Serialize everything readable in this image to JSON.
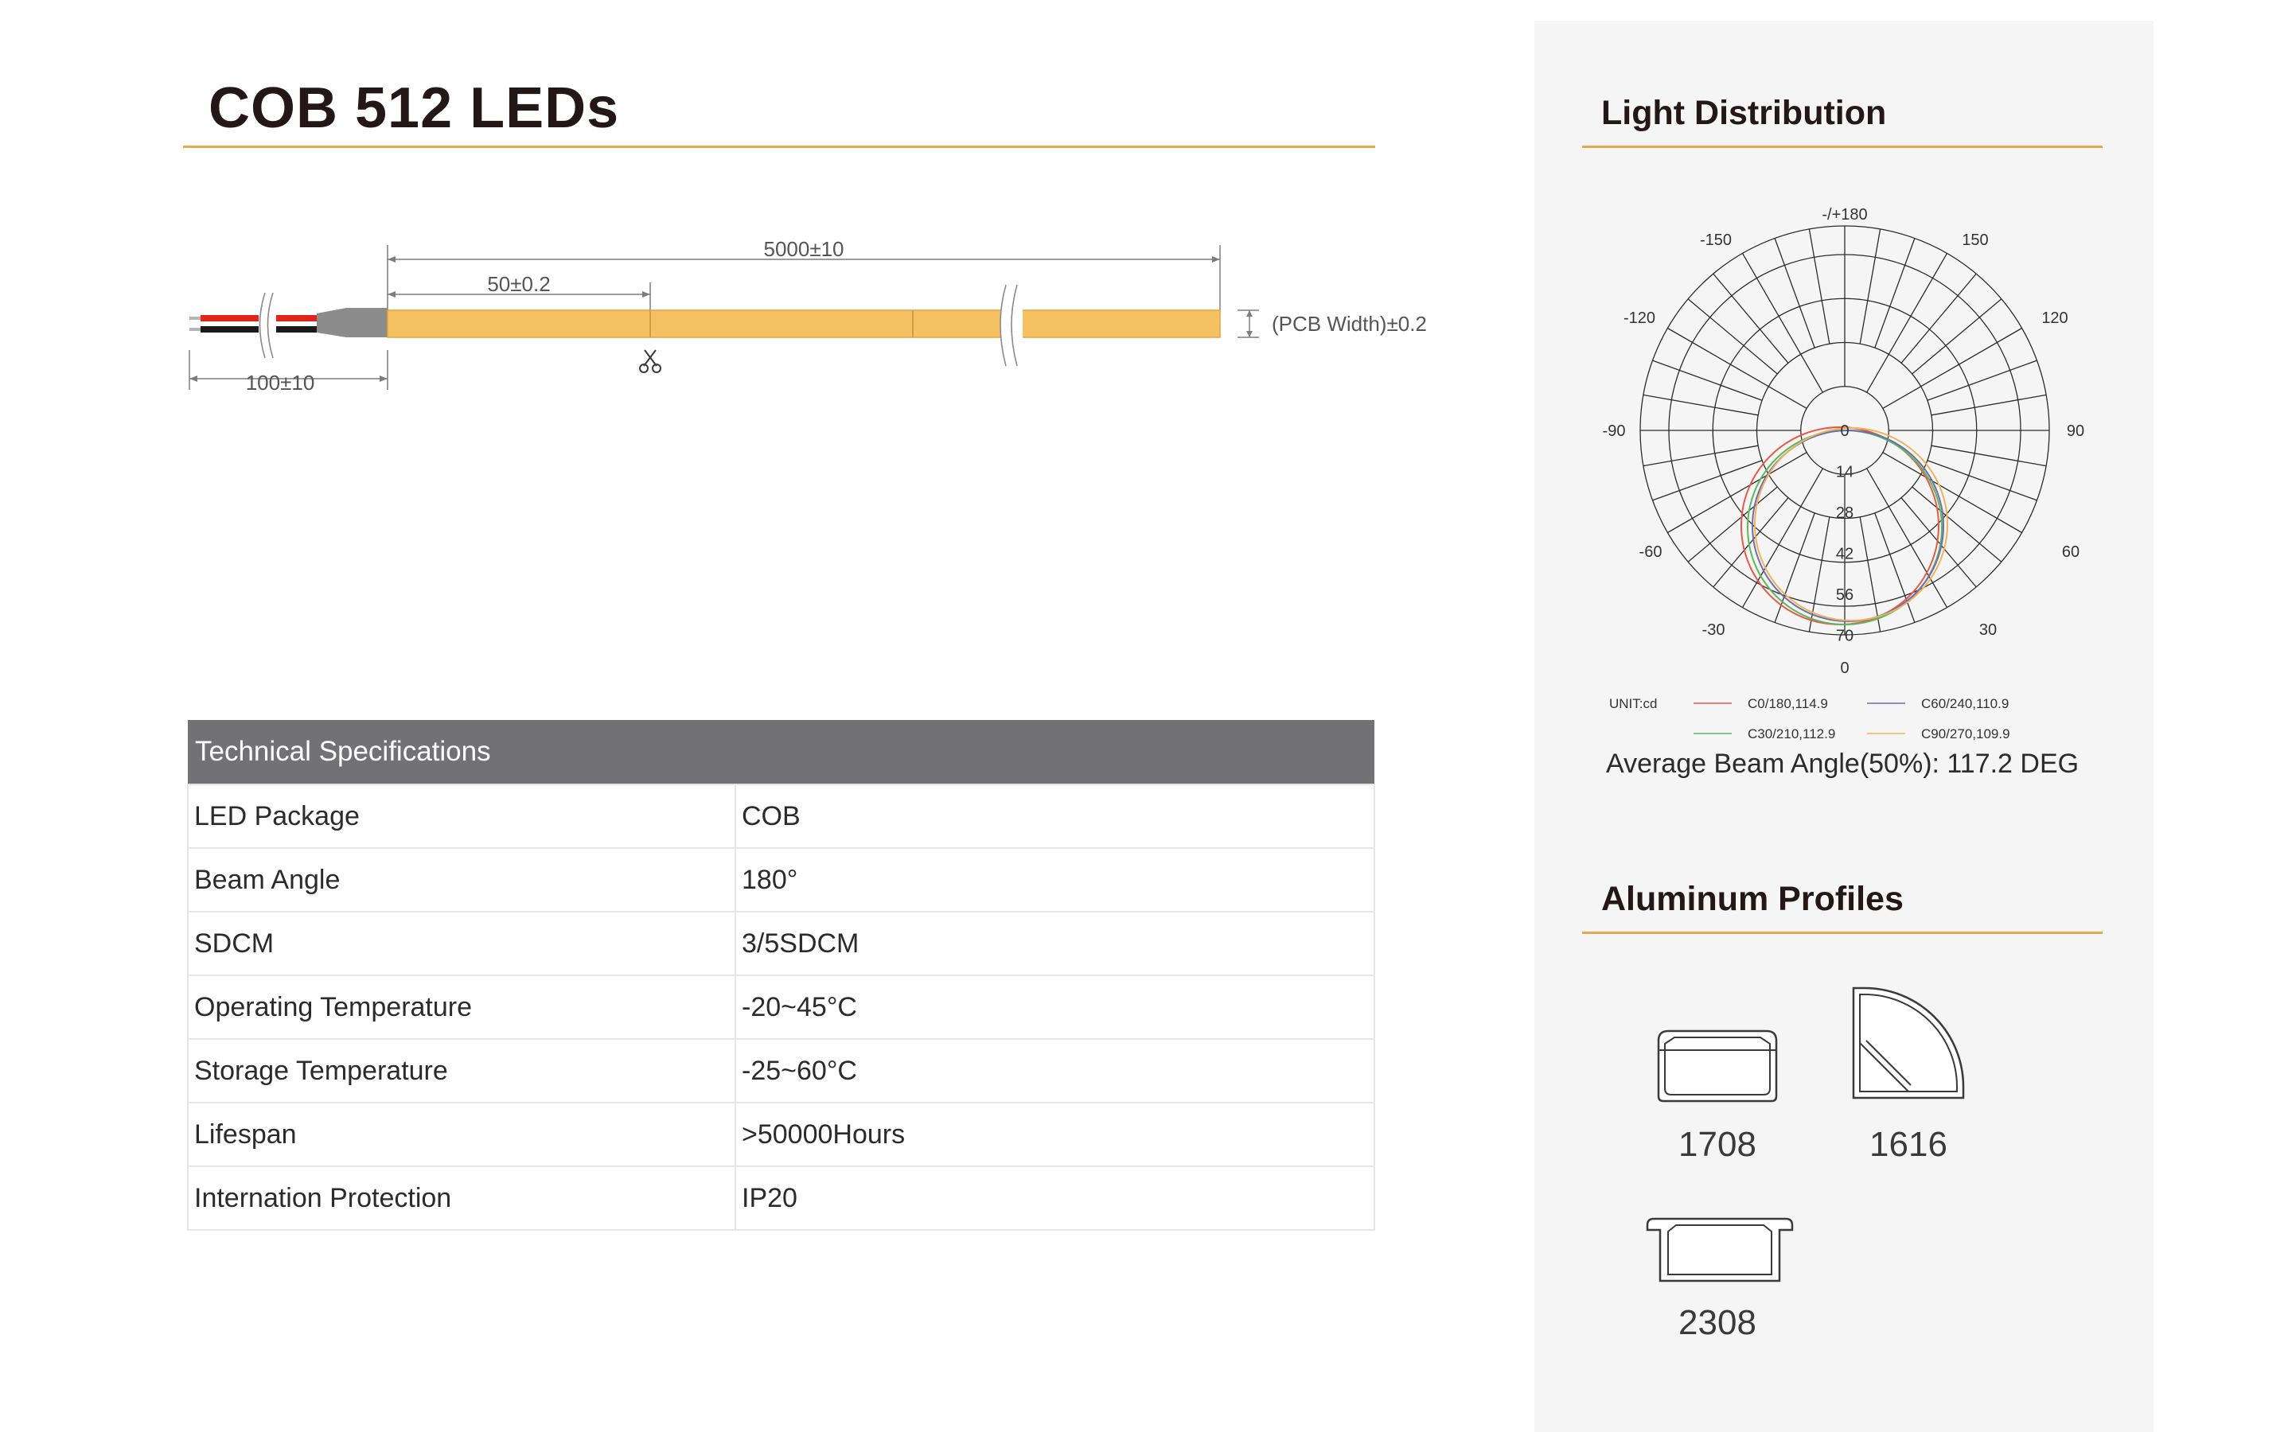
{
  "title": "COB 512 LEDs",
  "strip": {
    "length_label": "5000±10",
    "cut_label": "50±0.2",
    "wire_label": "100±10",
    "width_label": "(PCB Width)±0.2",
    "strip_color": "#f5c163",
    "wire_colors": [
      "#e1251b",
      "#1a1a1a"
    ]
  },
  "table": {
    "header": "Technical Specifications",
    "rows": [
      {
        "key": "LED Package",
        "value": "COB"
      },
      {
        "key": "Beam Angle",
        "value": "180°"
      },
      {
        "key": "SDCM",
        "value": "3/5SDCM"
      },
      {
        "key": "Operating Temperature",
        "value": "-20~45°C"
      },
      {
        "key": "Storage Temperature",
        "value": "-25~60°C"
      },
      {
        "key": "Lifespan",
        "value": ">50000Hours"
      },
      {
        "key": "Internation Protection",
        "value": "IP20"
      }
    ]
  },
  "light": {
    "heading": "Light Distribution",
    "angle_labels": {
      "top": "-/+180",
      "tl150": "-150",
      "tr150": "150",
      "l120": "-120",
      "r120": "120",
      "l90": "-90",
      "r90": "90",
      "l60": "-60",
      "r60": "60",
      "l30": "-30",
      "r30": "30",
      "bottom": "0"
    },
    "radial_labels": [
      "0",
      "14",
      "28",
      "42",
      "56",
      "70"
    ],
    "unit": "UNIT:cd",
    "legend": [
      {
        "label": "C0/180,114.9",
        "color": "#e8584a"
      },
      {
        "label": "C30/210,112.9",
        "color": "#5cb85c"
      },
      {
        "label": "C60/240,110.9",
        "color": "#6b6fb0"
      },
      {
        "label": "C90/270,109.9",
        "color": "#f0b357"
      }
    ],
    "beam_text": "Average Beam Angle(50%): 117.2 DEG"
  },
  "profiles": {
    "heading": "Aluminum Profiles",
    "items": [
      {
        "label": "1708",
        "icon": "profile-1708-icon"
      },
      {
        "label": "1616",
        "icon": "profile-1616-icon"
      },
      {
        "label": "2308",
        "icon": "profile-2308-icon"
      }
    ]
  }
}
